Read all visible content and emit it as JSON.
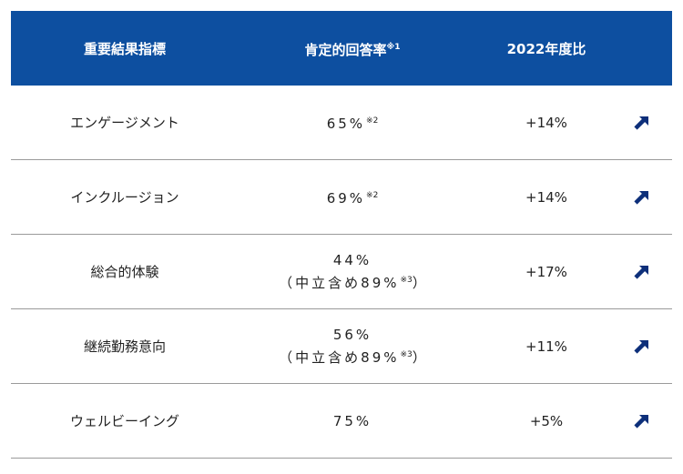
{
  "header": {
    "col1": "重要結果指標",
    "col2": "肯定的回答率",
    "col2_note": "※1",
    "col3": "2022年度比"
  },
  "rows": [
    {
      "label": "エンゲージメント",
      "value": "65%",
      "note": "※2",
      "sub": "",
      "sub_note": "",
      "sub_close": "",
      "change": "+14%"
    },
    {
      "label": "インクルージョン",
      "value": "69%",
      "note": "※2",
      "sub": "",
      "sub_note": "",
      "sub_close": "",
      "change": "+14%"
    },
    {
      "label": "総合的体験",
      "value": "44%",
      "note": "",
      "sub": "（中立含め89%",
      "sub_note": "※3",
      "sub_close": "）",
      "change": "+17%"
    },
    {
      "label": "継続勤務意向",
      "value": "56%",
      "note": "",
      "sub": "（中立含め89%",
      "sub_note": "※3",
      "sub_close": "）",
      "change": "+11%"
    },
    {
      "label": "ウェルビーイング",
      "value": "75%",
      "note": "",
      "sub": "",
      "sub_note": "",
      "sub_close": "",
      "change": "+5%"
    }
  ],
  "colors": {
    "header_bg": "#0d4fa0",
    "arrow": "#0d2f7a",
    "divider": "#9a9a9a"
  },
  "icons": {
    "trend": "arrow-up-right-icon"
  }
}
